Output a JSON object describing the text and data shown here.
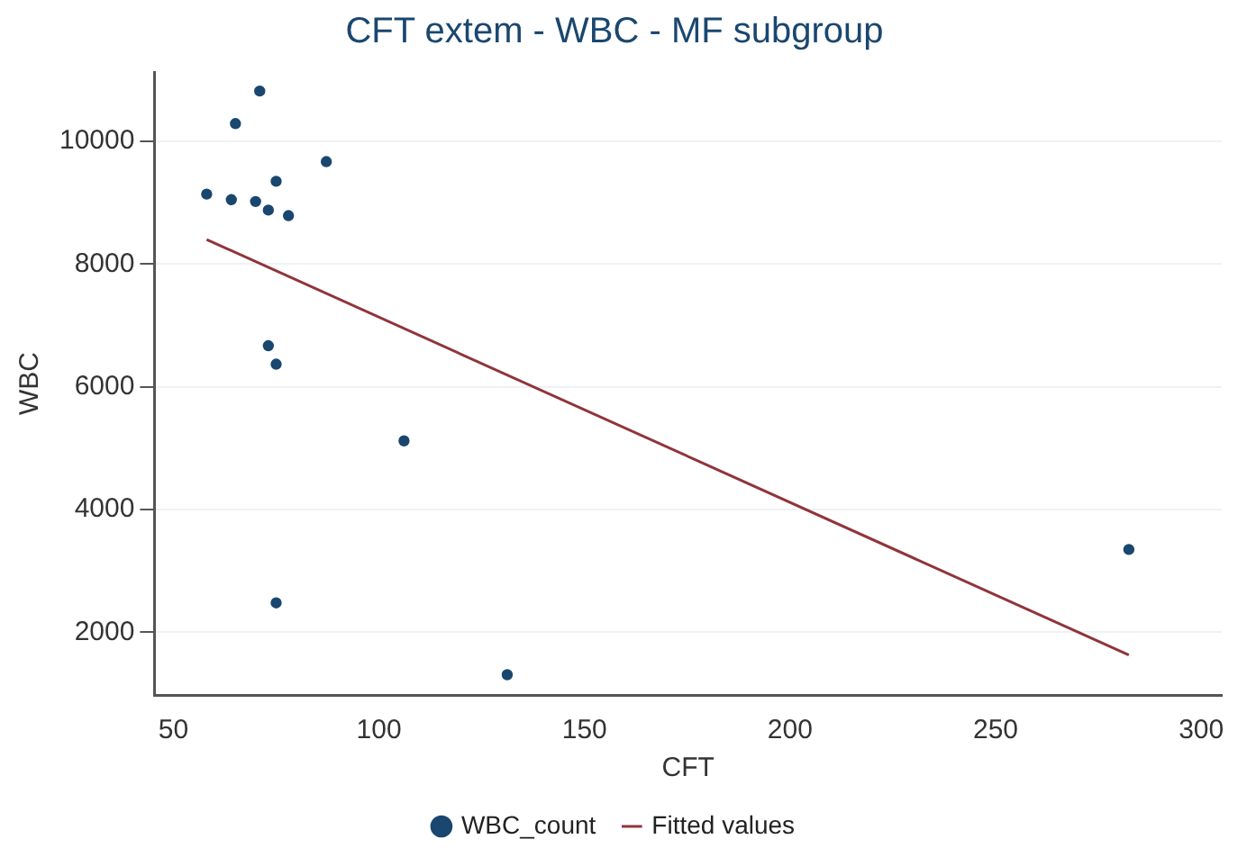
{
  "chart_data": {
    "type": "scatter",
    "title": "CFT extem - WBC - MF subgroup",
    "xlabel": "CFT",
    "ylabel": "WBC",
    "series": [
      {
        "name": "WBC_count",
        "marker": "circle",
        "color": "#1a476f",
        "x": [
          58.1,
          65.1,
          71.0,
          64.1,
          70.0,
          73.1,
          75.0,
          78.0,
          87.2,
          73.1,
          75.0,
          106.1,
          75.0,
          131.2,
          282.4
        ],
        "values": [
          9140,
          10290,
          10820,
          9050,
          9020,
          8880,
          9350,
          8790,
          9670,
          6670,
          6370,
          5120,
          2480,
          1310,
          3350
        ]
      },
      {
        "name": "Fitted values",
        "type": "line",
        "marker": "none",
        "color": "#90353b",
        "x": [
          58.1,
          282.4
        ],
        "values": [
          8400,
          1630
        ]
      }
    ],
    "xlim": [
      45.4,
      305
    ],
    "xticks": [
      50,
      100,
      150,
      200,
      250,
      300
    ],
    "ylim": [
      980,
      11130
    ],
    "yticks": [
      2000,
      4000,
      6000,
      8000,
      10000
    ],
    "grid": "y",
    "legend": "bottom"
  }
}
